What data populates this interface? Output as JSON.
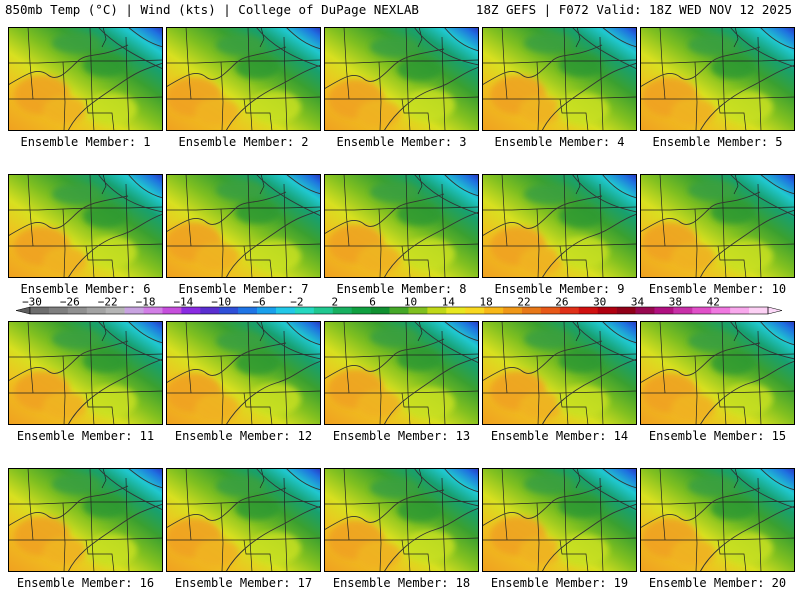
{
  "header": {
    "left": "850mb Temp (°C) | Wind (kts) | College of DuPage NEXLAB",
    "right": "18Z GEFS | F072 Valid: 18Z WED NOV 12 2025"
  },
  "members": [
    "Ensemble Member: 1",
    "Ensemble Member: 2",
    "Ensemble Member: 3",
    "Ensemble Member: 4",
    "Ensemble Member: 5",
    "Ensemble Member: 6",
    "Ensemble Member: 7",
    "Ensemble Member: 8",
    "Ensemble Member: 9",
    "Ensemble Member: 10",
    "Ensemble Member: 11",
    "Ensemble Member: 12",
    "Ensemble Member: 13",
    "Ensemble Member: 14",
    "Ensemble Member: 15",
    "Ensemble Member: 16",
    "Ensemble Member: 17",
    "Ensemble Member: 18",
    "Ensemble Member: 19",
    "Ensemble Member: 20"
  ],
  "colorbar": {
    "labels": [
      "-30",
      "-26",
      "-22",
      "-18",
      "-14",
      "-10",
      "-6",
      "-2",
      "2",
      "6",
      "10",
      "14",
      "18",
      "22",
      "26",
      "30",
      "34",
      "38",
      "42"
    ],
    "colors": [
      "#6e6e6e",
      "#7f7f7f",
      "#909090",
      "#a3a3a3",
      "#b5b5b5",
      "#c8a3e0",
      "#d27fe6",
      "#c64fdc",
      "#8a2be2",
      "#5a2fd0",
      "#2f4fd8",
      "#1f75e6",
      "#19a0ec",
      "#22c8e8",
      "#25d8c0",
      "#20c890",
      "#18b060",
      "#10a040",
      "#109030",
      "#45a828",
      "#80c020",
      "#c0d818",
      "#e8e820",
      "#f8d820",
      "#f8b818",
      "#f09818",
      "#e87818",
      "#e85818",
      "#e03018",
      "#d01010",
      "#b00010",
      "#900018",
      "#980850",
      "#b01080",
      "#c830a8",
      "#e050c8",
      "#f078e0",
      "#f8a8ec",
      "#fcd0f4"
    ]
  }
}
